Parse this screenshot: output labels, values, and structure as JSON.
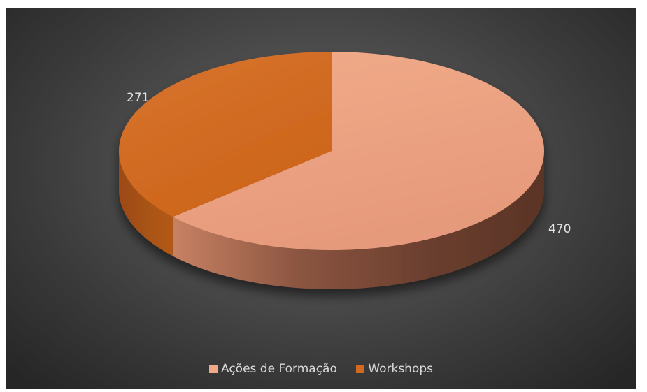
{
  "chart_data": {
    "type": "pie",
    "title": "",
    "labels": [
      "Ações de Formação",
      "Workshops"
    ],
    "values": [
      470,
      271
    ],
    "data_labels": [
      "470",
      "271"
    ],
    "colors": [
      "#e89a78",
      "#d2691e"
    ],
    "legend_position": "bottom",
    "style": "3d-pie"
  },
  "legend": {
    "items": [
      {
        "label": "Ações de Formação",
        "color": "#f0a886"
      },
      {
        "label": "Workshops",
        "color": "#d2691e"
      }
    ]
  }
}
